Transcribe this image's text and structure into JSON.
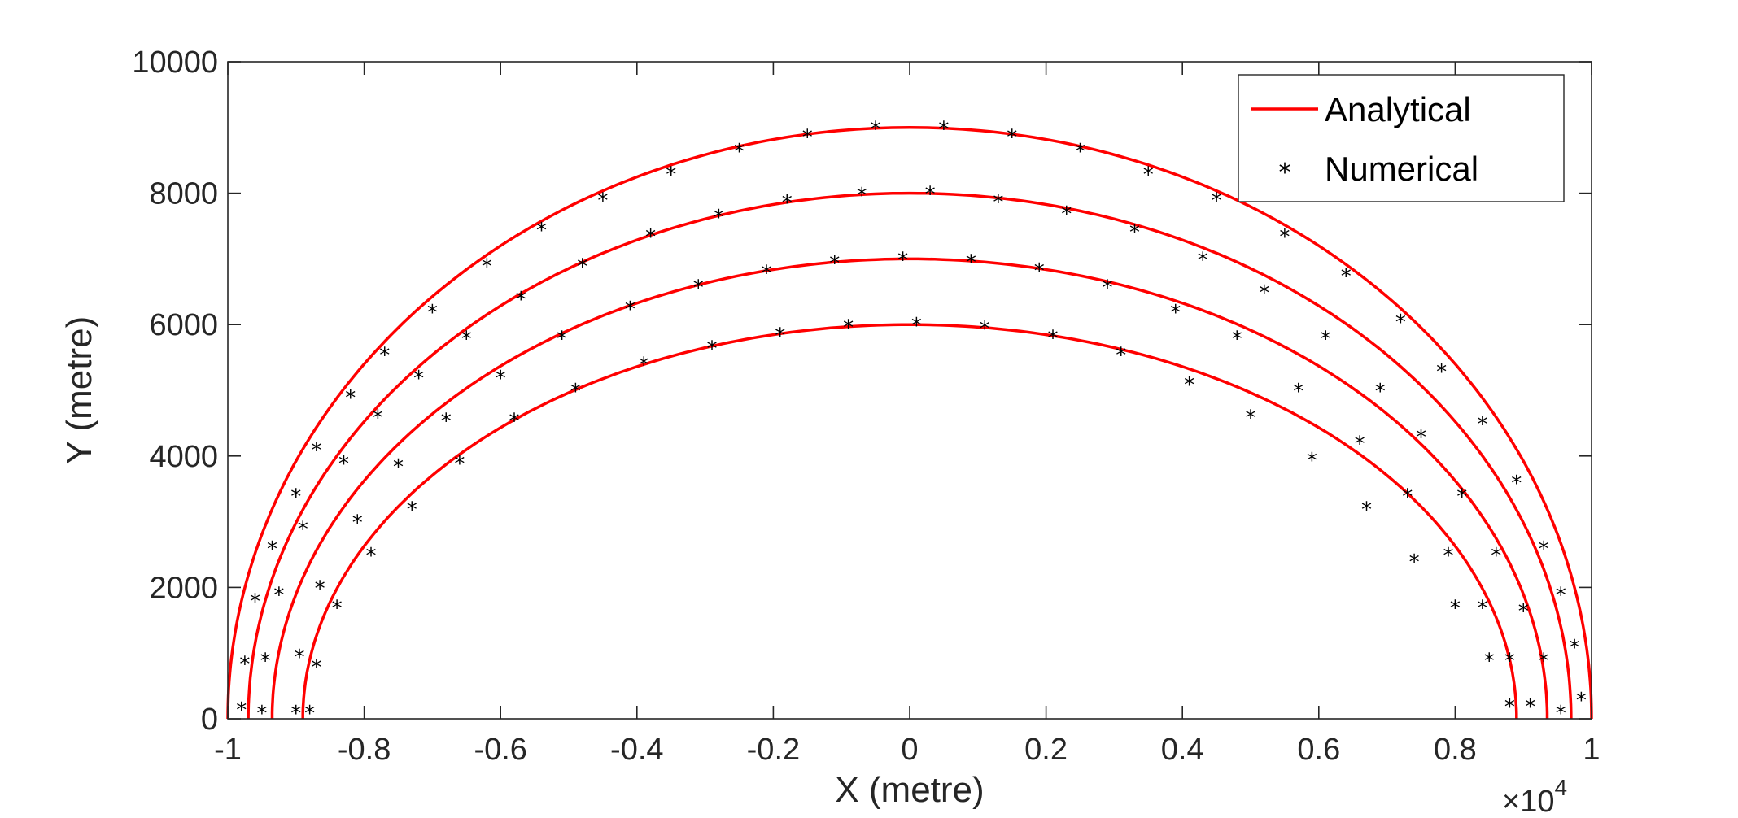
{
  "chart_data": {
    "type": "line",
    "xlabel": "X (metre)",
    "ylabel": "Y (metre)",
    "x_exponent_label": {
      "times": "×10",
      "power": "4"
    },
    "xlim": [
      -10000,
      10000
    ],
    "ylim": [
      0,
      10000
    ],
    "x_ticks": [
      -10000,
      -8000,
      -6000,
      -4000,
      -2000,
      0,
      2000,
      4000,
      6000,
      8000,
      10000
    ],
    "x_tick_labels": [
      "-1",
      "-0.8",
      "-0.6",
      "-0.4",
      "-0.2",
      "0",
      "0.2",
      "0.4",
      "0.6",
      "0.8",
      "1"
    ],
    "y_ticks": [
      0,
      2000,
      4000,
      6000,
      8000,
      10000
    ],
    "y_tick_labels": [
      "0",
      "2000",
      "4000",
      "6000",
      "8000",
      "10000"
    ],
    "grid": false,
    "legend_position": "top-right",
    "legend": [
      {
        "label": "Analytical",
        "style": "line"
      },
      {
        "label": "Numerical",
        "style": "marker"
      }
    ],
    "series": [
      {
        "name": "Analytical",
        "kind": "line",
        "color": "#ff0000",
        "curves": [
          {
            "shape": "ellipse",
            "semi_axis_x": 10000,
            "semi_axis_y": 9000
          },
          {
            "shape": "ellipse",
            "semi_axis_x": 9700,
            "semi_axis_y": 8000
          },
          {
            "shape": "ellipse",
            "semi_axis_x": 9350,
            "semi_axis_y": 7000
          },
          {
            "shape": "ellipse",
            "semi_axis_x": 8900,
            "semi_axis_y": 6000
          }
        ]
      },
      {
        "name": "Numerical",
        "kind": "marker",
        "marker": "*",
        "color": "#000000",
        "points": [
          [
            -9800,
            150
          ],
          [
            -9750,
            850
          ],
          [
            -9600,
            1800
          ],
          [
            -9350,
            2600
          ],
          [
            -9000,
            3400
          ],
          [
            -8700,
            4100
          ],
          [
            -8200,
            4900
          ],
          [
            -7700,
            5550
          ],
          [
            -7000,
            6200
          ],
          [
            -6200,
            6900
          ],
          [
            -5400,
            7450
          ],
          [
            -4500,
            7900
          ],
          [
            -3500,
            8300
          ],
          [
            -2500,
            8650
          ],
          [
            -1500,
            8870
          ],
          [
            -500,
            8990
          ],
          [
            500,
            8990
          ],
          [
            1500,
            8870
          ],
          [
            2500,
            8650
          ],
          [
            3500,
            8300
          ],
          [
            4500,
            7900
          ],
          [
            5500,
            7350
          ],
          [
            6400,
            6750
          ],
          [
            7200,
            6050
          ],
          [
            7800,
            5300
          ],
          [
            8400,
            4500
          ],
          [
            8900,
            3600
          ],
          [
            9300,
            2600
          ],
          [
            9550,
            1900
          ],
          [
            9750,
            1100
          ],
          [
            9850,
            300
          ],
          [
            -9500,
            100
          ],
          [
            -9450,
            900
          ],
          [
            -9250,
            1900
          ],
          [
            -8900,
            2900
          ],
          [
            -8300,
            3900
          ],
          [
            -7800,
            4600
          ],
          [
            -7200,
            5200
          ],
          [
            -6500,
            5800
          ],
          [
            -5700,
            6400
          ],
          [
            -4800,
            6900
          ],
          [
            -3800,
            7350
          ],
          [
            -2800,
            7650
          ],
          [
            -1800,
            7870
          ],
          [
            -700,
            7980
          ],
          [
            300,
            8000
          ],
          [
            1300,
            7880
          ],
          [
            2300,
            7700
          ],
          [
            3300,
            7420
          ],
          [
            4300,
            7000
          ],
          [
            5200,
            6500
          ],
          [
            6100,
            5800
          ],
          [
            6900,
            5000
          ],
          [
            7500,
            4300
          ],
          [
            8100,
            3400
          ],
          [
            8600,
            2500
          ],
          [
            9000,
            1650
          ],
          [
            9300,
            900
          ],
          [
            9550,
            100
          ],
          [
            -9000,
            100
          ],
          [
            -8950,
            950
          ],
          [
            -8650,
            2000
          ],
          [
            -8100,
            3000
          ],
          [
            -7500,
            3850
          ],
          [
            -6800,
            4550
          ],
          [
            -6000,
            5200
          ],
          [
            -5100,
            5800
          ],
          [
            -4100,
            6250
          ],
          [
            -3100,
            6580
          ],
          [
            -2100,
            6800
          ],
          [
            -1100,
            6950
          ],
          [
            -100,
            7000
          ],
          [
            900,
            6960
          ],
          [
            1900,
            6830
          ],
          [
            2900,
            6580
          ],
          [
            3900,
            6200
          ],
          [
            4800,
            5800
          ],
          [
            5700,
            5000
          ],
          [
            6600,
            4200
          ],
          [
            7300,
            3400
          ],
          [
            7900,
            2500
          ],
          [
            8400,
            1700
          ],
          [
            8800,
            900
          ],
          [
            9100,
            200
          ],
          [
            -8800,
            100
          ],
          [
            -8700,
            800
          ],
          [
            -8400,
            1700
          ],
          [
            -7900,
            2500
          ],
          [
            -7300,
            3200
          ],
          [
            -6600,
            3900
          ],
          [
            -5800,
            4550
          ],
          [
            -4900,
            5000
          ],
          [
            -3900,
            5400
          ],
          [
            -2900,
            5650
          ],
          [
            -1900,
            5850
          ],
          [
            -900,
            5970
          ],
          [
            100,
            6000
          ],
          [
            1100,
            5950
          ],
          [
            2100,
            5810
          ],
          [
            3100,
            5550
          ],
          [
            4100,
            5100
          ],
          [
            5000,
            4600
          ],
          [
            5900,
            3950
          ],
          [
            6700,
            3200
          ],
          [
            7400,
            2400
          ],
          [
            8000,
            1700
          ],
          [
            8500,
            900
          ],
          [
            8800,
            200
          ]
        ]
      }
    ]
  }
}
